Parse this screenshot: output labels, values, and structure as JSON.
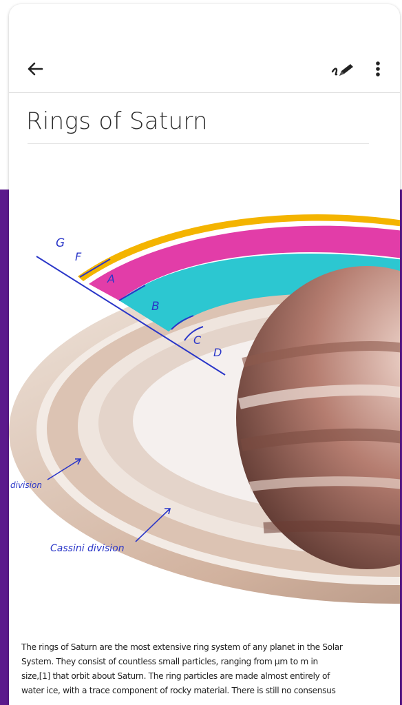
{
  "toolbar": {
    "back_icon": "arrow-left-icon",
    "pen_icon": "ink-pen-icon",
    "more_icon": "more-vertical-icon"
  },
  "note": {
    "title": "Rings of Saturn",
    "annotations": {
      "g": "G",
      "f": "F",
      "a": "A",
      "b": "B",
      "c": "C",
      "d": "D",
      "division": "division",
      "cassini": "Cassini division"
    },
    "body_lines": [
      "The rings of Saturn are the most extensive ring system of any planet in the Solar",
      "System. They consist of countless small particles, ranging from µm to m in",
      "size,[1] that orbit about Saturn. The ring particles are made almost entirely of",
      "water ice, with a trace component of rocky material. There is still no consensus"
    ]
  },
  "colors": {
    "accent_purple": "#5b1a8c",
    "ink_blue": "#2a36c8",
    "ring_a": "#e23da8",
    "ring_b": "#2cc7d1",
    "ring_g": "#f4b400"
  }
}
